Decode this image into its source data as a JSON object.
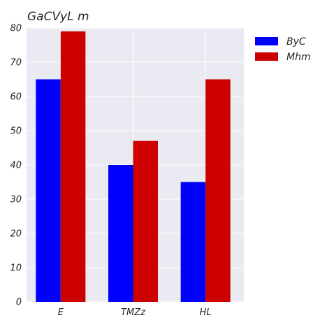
{
  "chart_data": {
    "type": "bar",
    "title": "GaCVyL m",
    "xlabel": "",
    "ylabel": "",
    "categories": [
      "E",
      "TMZz",
      "HL"
    ],
    "series": [
      {
        "name": "ByC",
        "values": [
          65,
          40,
          35
        ],
        "color": "#0000ff"
      },
      {
        "name": "Mhm",
        "values": [
          79,
          47,
          65
        ],
        "color": "#cc0000"
      }
    ],
    "ylim": [
      0,
      80
    ],
    "yticks": [
      0,
      10,
      20,
      30,
      40,
      50,
      60,
      70,
      80
    ],
    "grid": true,
    "legend_position": "outside-top-right",
    "colors": {
      "plot_background": "#eaeaf2",
      "grid": "#ffffff",
      "text": "#262626"
    }
  }
}
